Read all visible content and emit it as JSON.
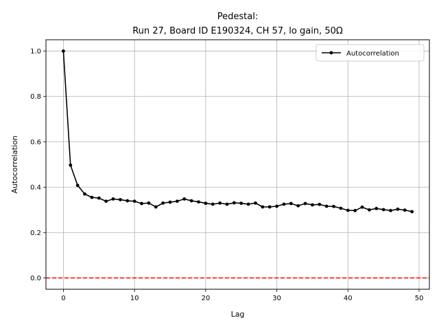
{
  "chart_data": {
    "type": "line",
    "title": "Pedestal:",
    "subtitle": "Run 27, Board ID E190324, CH 57, lo gain, 50Ω",
    "xlabel": "Lag",
    "ylabel": "Autocorrelation",
    "xlim": [
      -2.45,
      51.45
    ],
    "ylim": [
      -0.05,
      1.05
    ],
    "xticks": [
      0,
      10,
      20,
      30,
      40,
      50
    ],
    "yticks": [
      0.0,
      0.2,
      0.4,
      0.6,
      0.8,
      1.0
    ],
    "xtick_labels": [
      "0",
      "10",
      "20",
      "30",
      "40",
      "50"
    ],
    "ytick_labels": [
      "0.0",
      "0.2",
      "0.4",
      "0.6",
      "0.8",
      "1.0"
    ],
    "grid": true,
    "legend_position": "top-right",
    "series": [
      {
        "name": "Autocorrelation",
        "color": "#000000",
        "marker": "dot",
        "x": [
          0,
          1,
          2,
          3,
          4,
          5,
          6,
          7,
          8,
          9,
          10,
          11,
          12,
          13,
          14,
          15,
          16,
          17,
          18,
          19,
          20,
          21,
          22,
          23,
          24,
          25,
          26,
          27,
          28,
          29,
          30,
          31,
          32,
          33,
          34,
          35,
          36,
          37,
          38,
          39,
          40,
          41,
          42,
          43,
          44,
          45,
          46,
          47,
          48,
          49
        ],
        "y": [
          1.0,
          0.497,
          0.408,
          0.37,
          0.355,
          0.352,
          0.338,
          0.348,
          0.345,
          0.34,
          0.338,
          0.328,
          0.33,
          0.313,
          0.33,
          0.334,
          0.338,
          0.348,
          0.34,
          0.335,
          0.329,
          0.325,
          0.33,
          0.325,
          0.331,
          0.329,
          0.325,
          0.33,
          0.313,
          0.313,
          0.316,
          0.325,
          0.328,
          0.318,
          0.328,
          0.322,
          0.324,
          0.316,
          0.315,
          0.307,
          0.298,
          0.297,
          0.312,
          0.3,
          0.306,
          0.301,
          0.297,
          0.303,
          0.299,
          0.292
        ]
      }
    ],
    "reference_line": {
      "y": 0.0,
      "color": "#ff0000",
      "style": "dashed"
    }
  }
}
